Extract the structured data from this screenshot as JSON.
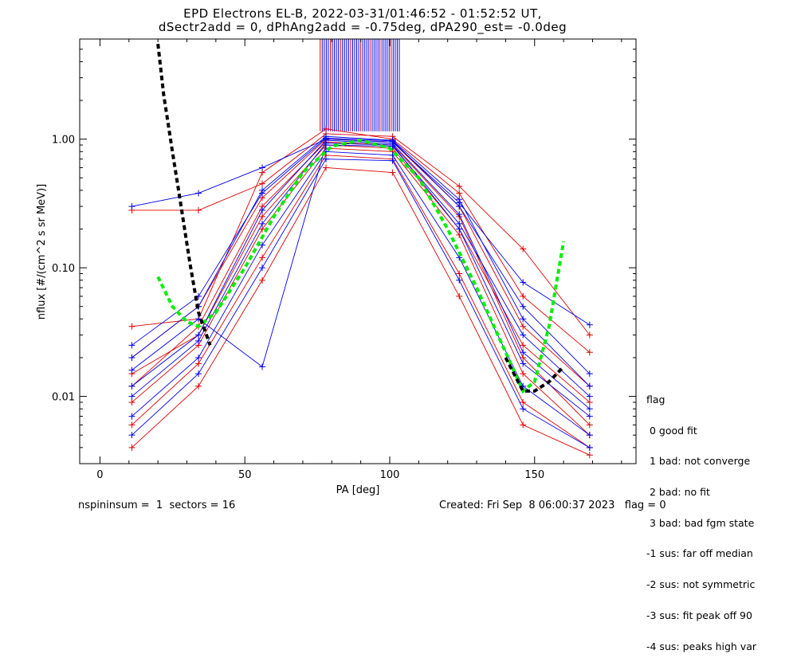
{
  "titles": {
    "line1": "EPD Electrons EL-B, 2022-03-31/01:46:52 - 01:52:52 UT,",
    "line2": "dSectr2add = 0, dPhAng2add = -0.75deg, dPA290_est=  -0.0deg"
  },
  "legend": {
    "header": "flag",
    "items": [
      " 0 good fit",
      " 1 bad: not converge",
      " 2 bad: no fit",
      " 3 bad: bad fgm state",
      "-1 sus: far off median",
      "-2 sus: not symmetric",
      "-3 sus: fit peak off 90",
      "-4 sus: peaks high var"
    ]
  },
  "footer": {
    "left": "nspininsum =  1  sectors = 16",
    "right": "Created: Fri Sep  8 06:00:37 2023   flag = 0"
  },
  "colors": {
    "red": "#dd0000",
    "blue": "#0000ee",
    "green": "#00ee00",
    "black": "#000000"
  },
  "chart_data": {
    "type": "line",
    "title": "EPD Electrons EL-B, 2022-03-31/01:46:52 - 01:52:52 UT,",
    "xlabel": "PA [deg]",
    "ylabel": "nflux [#/(cm^2 s sr MeV)]",
    "xlim": [
      -7,
      185
    ],
    "ylim": [
      0.003,
      6.0
    ],
    "yscale": "log",
    "xticks": [
      0,
      50,
      100,
      150
    ],
    "xtick_labels": [
      "0",
      "50",
      "100",
      "150"
    ],
    "yticks": [
      0.01,
      0.1,
      1.0
    ],
    "ytick_labels": [
      "0.01",
      "0.10",
      "1.00"
    ],
    "pa_bins": [
      11,
      34,
      56,
      78,
      101,
      124,
      146,
      169
    ],
    "series": [
      {
        "color": "red",
        "values": [
          0.012,
          0.035,
          0.3,
          0.95,
          0.9,
          0.25,
          0.02,
          0.006
        ]
      },
      {
        "color": "red",
        "values": [
          0.009,
          0.025,
          0.2,
          0.85,
          0.8,
          0.18,
          0.015,
          0.005
        ]
      },
      {
        "color": "red",
        "values": [
          0.28,
          0.28,
          0.45,
          1.1,
          1.05,
          0.43,
          0.14,
          0.03
        ]
      },
      {
        "color": "red",
        "values": [
          0.035,
          0.04,
          0.55,
          1.2,
          1.0,
          0.38,
          0.06,
          0.022
        ]
      },
      {
        "color": "red",
        "values": [
          0.006,
          0.018,
          0.12,
          0.75,
          0.7,
          0.09,
          0.009,
          0.004
        ]
      },
      {
        "color": "red",
        "values": [
          0.02,
          0.05,
          0.35,
          1.0,
          0.95,
          0.3,
          0.035,
          0.012
        ]
      },
      {
        "color": "red",
        "values": [
          0.004,
          0.012,
          0.08,
          0.6,
          0.55,
          0.06,
          0.006,
          0.0035
        ]
      },
      {
        "color": "red",
        "values": [
          0.015,
          0.03,
          0.25,
          0.9,
          0.85,
          0.2,
          0.025,
          0.009
        ]
      },
      {
        "color": "blue",
        "values": [
          0.3,
          0.38,
          0.6,
          1.0,
          0.95,
          0.32,
          0.077,
          0.036
        ]
      },
      {
        "color": "blue",
        "values": [
          0.012,
          0.03,
          0.28,
          0.98,
          0.92,
          0.26,
          0.022,
          0.008
        ]
      },
      {
        "color": "blue",
        "values": [
          0.02,
          0.05,
          0.4,
          1.05,
          0.98,
          0.34,
          0.04,
          0.012
        ]
      },
      {
        "color": "blue",
        "values": [
          0.007,
          0.02,
          0.15,
          0.8,
          0.75,
          0.12,
          0.012,
          0.005
        ]
      },
      {
        "color": "blue",
        "values": [
          0.016,
          0.04,
          0.017,
          0.9,
          0.88,
          0.22,
          0.03,
          0.01
        ]
      },
      {
        "color": "blue",
        "values": [
          0.005,
          0.015,
          0.1,
          0.7,
          0.68,
          0.08,
          0.008,
          0.004
        ]
      },
      {
        "color": "blue",
        "values": [
          0.01,
          0.027,
          0.22,
          0.93,
          0.9,
          0.2,
          0.018,
          0.007
        ]
      },
      {
        "color": "blue",
        "values": [
          0.025,
          0.06,
          0.38,
          1.02,
          0.97,
          0.3,
          0.05,
          0.015
        ]
      }
    ],
    "fits": [
      {
        "color": "green",
        "style": "dashed",
        "x": [
          20,
          25,
          30,
          34,
          40,
          50,
          60,
          70,
          80,
          90,
          100,
          110,
          120,
          130,
          140,
          146,
          150,
          155,
          160
        ],
        "y": [
          0.085,
          0.05,
          0.038,
          0.035,
          0.045,
          0.1,
          0.25,
          0.55,
          0.88,
          0.98,
          0.85,
          0.5,
          0.2,
          0.07,
          0.022,
          0.011,
          0.013,
          0.035,
          0.16
        ]
      },
      {
        "color": "black",
        "style": "dashed",
        "x": [
          20,
          22,
          25,
          28,
          31,
          34,
          38
        ],
        "y": [
          5.5,
          2.2,
          0.8,
          0.3,
          0.11,
          0.045,
          0.025
        ]
      },
      {
        "color": "black",
        "style": "dashed",
        "x": [
          140,
          146,
          150,
          155,
          160
        ],
        "y": [
          0.02,
          0.011,
          0.011,
          0.013,
          0.017
        ]
      }
    ]
  }
}
